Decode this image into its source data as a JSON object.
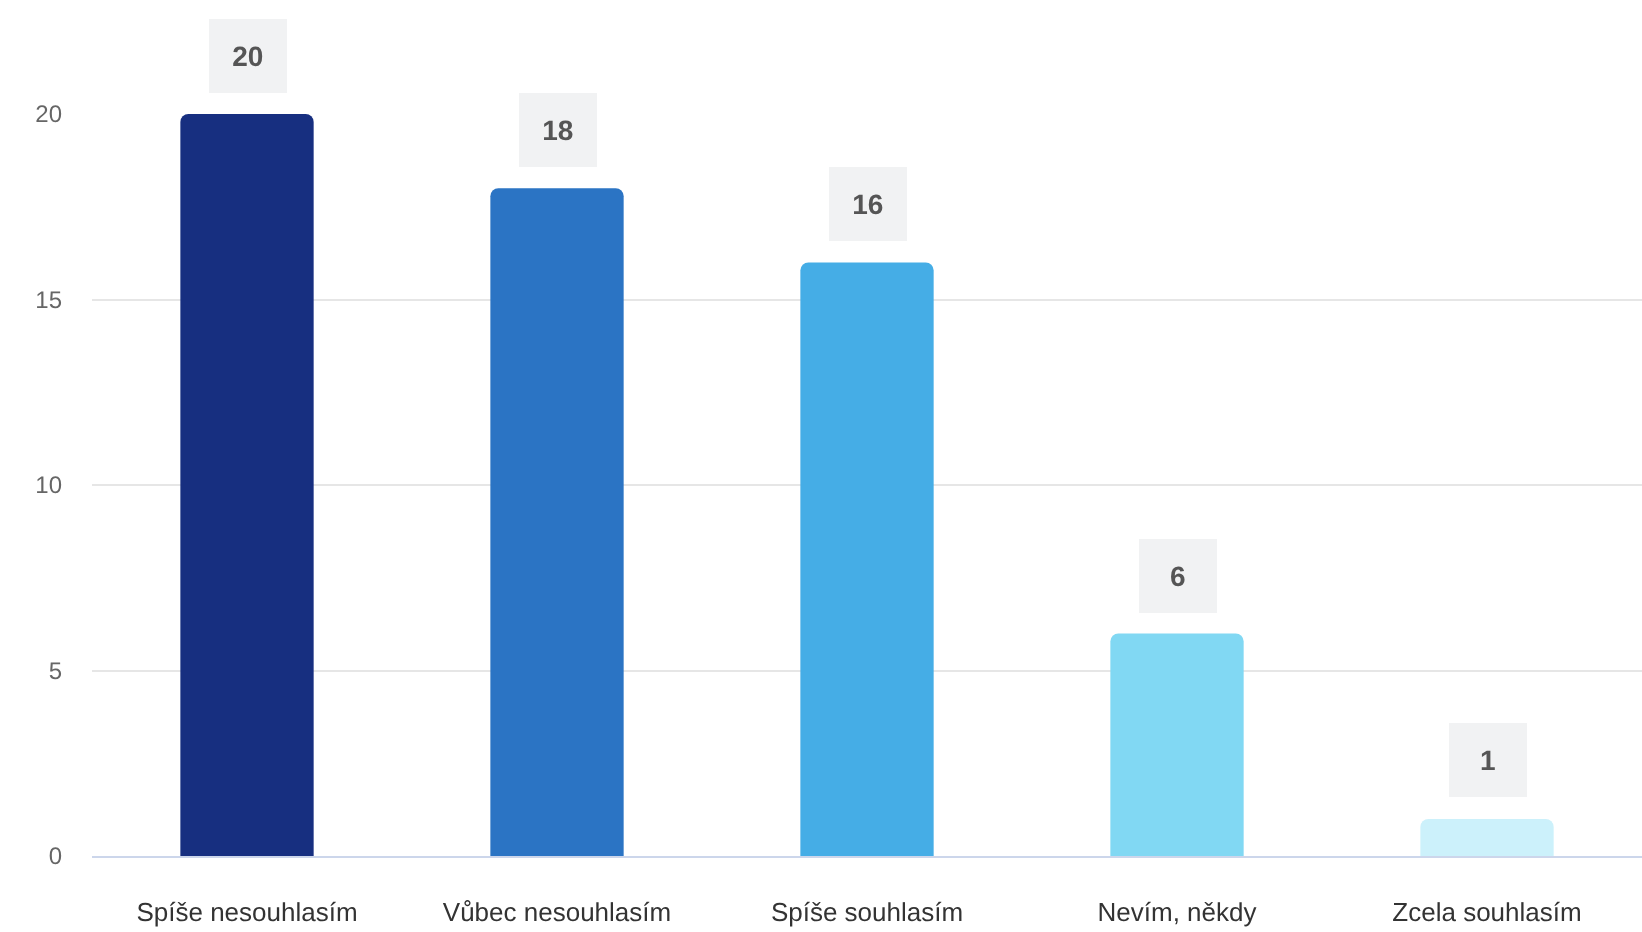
{
  "chart_data": {
    "type": "bar",
    "categories": [
      "Spíše nesouhlasím",
      "Vůbec nesouhlasím",
      "Spíše souhlasím",
      "Nevím, někdy",
      "Zcela souhlasím"
    ],
    "values": [
      20,
      18,
      16,
      6,
      1
    ],
    "colors": [
      "#172f80",
      "#2b74c4",
      "#45ade6",
      "#81d8f3",
      "#ccf1fb"
    ],
    "ylim": [
      0,
      20
    ],
    "yticks": [
      0,
      5,
      10,
      15,
      20
    ],
    "grid": "y",
    "data_labels": true
  }
}
